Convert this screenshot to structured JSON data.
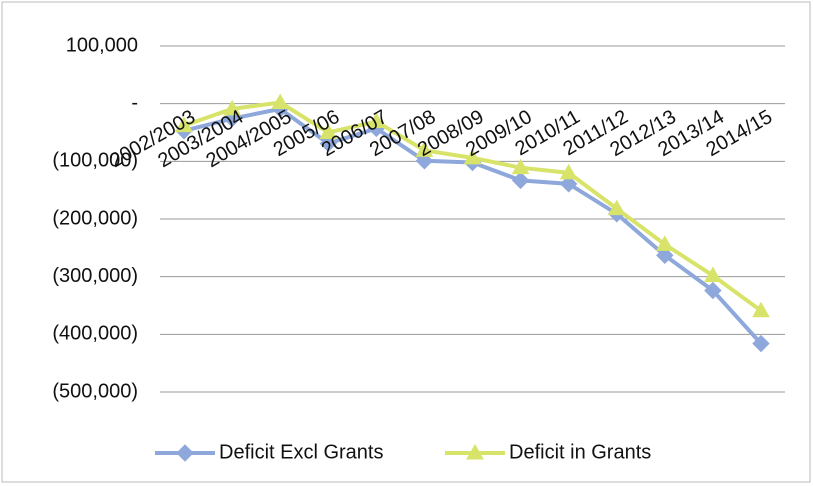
{
  "chart_data": {
    "type": "line",
    "categories": [
      "2002/2003",
      "2003/2004",
      "2004/2005",
      "2005/06",
      "2006/07",
      "2007/08",
      "2008/09",
      "2009/10",
      "2010/11",
      "2011/12",
      "2012/13",
      "2013/14",
      "2014/15"
    ],
    "series": [
      {
        "name": "Deficit Excl Grants",
        "color": "#8ea8dc",
        "marker": "diamond",
        "values": [
          -47000,
          -26000,
          -9000,
          -69000,
          -43000,
          -99000,
          -102000,
          -133000,
          -139000,
          -191000,
          -263000,
          -324000,
          -416000
        ]
      },
      {
        "name": "Deficit in Grants",
        "color": "#d8e36a",
        "marker": "triangle",
        "values": [
          -38000,
          -9000,
          2000,
          -50000,
          -31000,
          -81000,
          -94000,
          -111000,
          -120000,
          -182000,
          -244000,
          -298000,
          -359000
        ]
      }
    ],
    "ylim": [
      -500000,
      100000
    ],
    "yticks": [
      {
        "value": 100000,
        "label": "100,000"
      },
      {
        "value": 0,
        "label": "-"
      },
      {
        "value": -100000,
        "label": "(100,000)"
      },
      {
        "value": -200000,
        "label": "(200,000)"
      },
      {
        "value": -300000,
        "label": "(300,000)"
      },
      {
        "value": -400000,
        "label": "(400,000)"
      },
      {
        "value": -500000,
        "label": "(500,000)"
      }
    ],
    "grid": true,
    "legend": "bottom"
  }
}
